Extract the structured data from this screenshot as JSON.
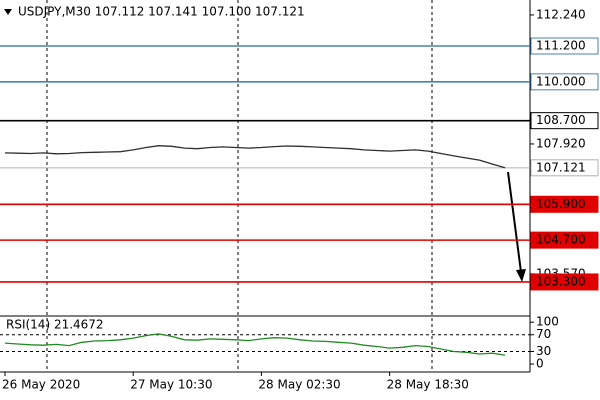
{
  "chart_data": [
    {
      "type": "line",
      "title": "USDJPY,M30  107.112 107.141 107.100 107.121",
      "categories": [
        "26 May 2020",
        null,
        null,
        null,
        null,
        null,
        null,
        null,
        null,
        null,
        "27 May 10:30",
        null,
        null,
        null,
        null,
        null,
        null,
        null,
        null,
        null,
        "28 May 02:30",
        null,
        null,
        null,
        null,
        null,
        null,
        null,
        null,
        null,
        "28 May 18:30",
        null,
        null,
        null,
        null,
        null,
        null,
        null,
        null,
        null
      ],
      "series": [
        {
          "name": "USDJPY",
          "color": "#2f2f2f",
          "values": [
            107.62,
            107.61,
            107.6,
            107.62,
            107.59,
            107.6,
            107.63,
            107.64,
            107.65,
            107.66,
            107.72,
            107.8,
            107.86,
            107.84,
            107.78,
            107.76,
            107.8,
            107.82,
            107.8,
            107.78,
            107.8,
            107.83,
            107.85,
            107.84,
            107.82,
            107.8,
            107.78,
            107.76,
            107.72,
            107.7,
            107.68,
            107.7,
            107.72,
            107.68,
            107.6,
            107.52,
            107.45,
            107.38,
            107.25,
            107.121
          ]
        }
      ],
      "ylim": [
        102.26,
        112.74
      ],
      "yticks": [
        {
          "value": 112.24,
          "label": "112.240"
        },
        {
          "value": 107.92,
          "label": "107.920"
        },
        {
          "value": 103.57,
          "label": "103.570"
        }
      ],
      "levels": [
        {
          "value": 111.2,
          "label": "111.200",
          "color": "#4682b4",
          "filled": false
        },
        {
          "value": 110.0,
          "label": "110.000",
          "color": "#4682b4",
          "filled": false
        },
        {
          "value": 108.7,
          "label": "108.700",
          "color": "#000000",
          "filled": false
        },
        {
          "value": 107.121,
          "label": "107.121",
          "color": "#b0b0b0",
          "filled": false
        },
        {
          "value": 105.9,
          "label": "105.900",
          "color": "#e00000",
          "filled": true
        },
        {
          "value": 104.7,
          "label": "104.700",
          "color": "#e00000",
          "filled": true
        },
        {
          "value": 103.3,
          "label": "103.300",
          "color": "#e00000",
          "filled": true
        }
      ]
    },
    {
      "type": "line",
      "title": "RSI(14) 21.4672",
      "series": [
        {
          "name": "RSI(14)",
          "color": "#228b22",
          "values": [
            50,
            48,
            46,
            45,
            47,
            44,
            52,
            55,
            56,
            58,
            62,
            68,
            72,
            66,
            58,
            57,
            60,
            59,
            58,
            56,
            60,
            63,
            62,
            58,
            55,
            54,
            52,
            50,
            45,
            42,
            38,
            40,
            44,
            42,
            36,
            30,
            28,
            24,
            26,
            21.4672
          ]
        }
      ],
      "ylim": [
        -19,
        110
      ],
      "yticks": [
        0,
        30,
        70,
        100
      ],
      "levels": [
        30,
        70
      ]
    }
  ]
}
